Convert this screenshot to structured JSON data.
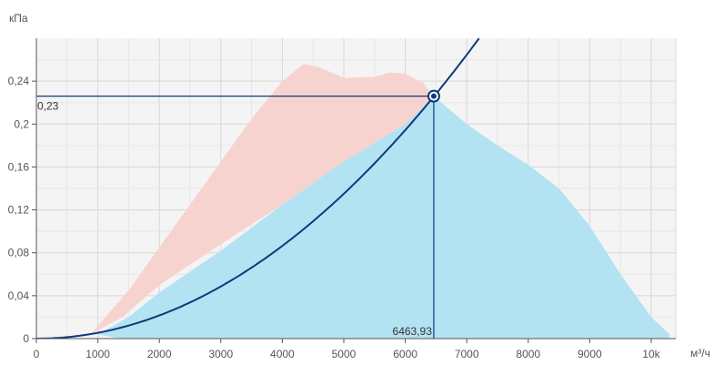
{
  "chart_data": {
    "type": "area",
    "x_unit": "м³/ч",
    "y_unit": "кПа",
    "xlim": [
      0,
      10400
    ],
    "ylim": [
      0,
      0.28
    ],
    "x_ticks": [
      0,
      1000,
      2000,
      3000,
      4000,
      5000,
      6000,
      7000,
      8000,
      9000,
      10000
    ],
    "x_tick_labels": [
      "0",
      "1000",
      "2000",
      "3000",
      "4000",
      "5000",
      "6000",
      "7000",
      "8000",
      "9000",
      "10k"
    ],
    "y_ticks": [
      0,
      0.04,
      0.08,
      0.12,
      0.16,
      0.2,
      0.24
    ],
    "y_tick_labels": [
      "0",
      "0,04",
      "0,08",
      "0,12",
      "0,16",
      "0,2",
      "0,24"
    ],
    "grid": true,
    "colors": {
      "pink_area": "#f7d3cf",
      "blue_area": "#b3e3f3",
      "system_curve": "#0e3a7a",
      "grid": "#d7d7d7",
      "plot_background": "#f4f4f4"
    },
    "areas": [
      {
        "id": "pink",
        "color": "#f7d3cf",
        "points": [
          [
            880,
            0.004
          ],
          [
            1500,
            0.045
          ],
          [
            2000,
            0.085
          ],
          [
            2500,
            0.125
          ],
          [
            3000,
            0.165
          ],
          [
            3500,
            0.205
          ],
          [
            4000,
            0.24
          ],
          [
            4350,
            0.256
          ],
          [
            4600,
            0.253
          ],
          [
            5000,
            0.243
          ],
          [
            5500,
            0.244
          ],
          [
            5750,
            0.248
          ],
          [
            6000,
            0.247
          ],
          [
            6300,
            0.238
          ],
          [
            6400,
            0.23
          ],
          [
            6460,
            0.224
          ],
          [
            6000,
            0.2
          ],
          [
            5000,
            0.165
          ],
          [
            4000,
            0.125
          ],
          [
            3000,
            0.088
          ],
          [
            2000,
            0.05
          ],
          [
            1400,
            0.02
          ],
          [
            880,
            0.004
          ]
        ]
      },
      {
        "id": "blue",
        "color": "#b3e3f3",
        "points": [
          [
            1350,
            0.0
          ],
          [
            1000,
            0.004
          ],
          [
            1500,
            0.02
          ],
          [
            2000,
            0.043
          ],
          [
            3000,
            0.082
          ],
          [
            4000,
            0.125
          ],
          [
            5000,
            0.165
          ],
          [
            6000,
            0.2
          ],
          [
            6463.93,
            0.226
          ],
          [
            7000,
            0.2
          ],
          [
            7500,
            0.18
          ],
          [
            8000,
            0.162
          ],
          [
            8500,
            0.14
          ],
          [
            9000,
            0.105
          ],
          [
            9500,
            0.06
          ],
          [
            10000,
            0.02
          ],
          [
            10300,
            0.004
          ],
          [
            10300,
            0.0
          ]
        ]
      }
    ],
    "system_curve": {
      "a": 5.4e-09,
      "x_max": 7200
    },
    "operating_point": {
      "x": 6463.93,
      "y": 0.226,
      "x_label": "6463,93",
      "y_label": "0,23"
    }
  }
}
